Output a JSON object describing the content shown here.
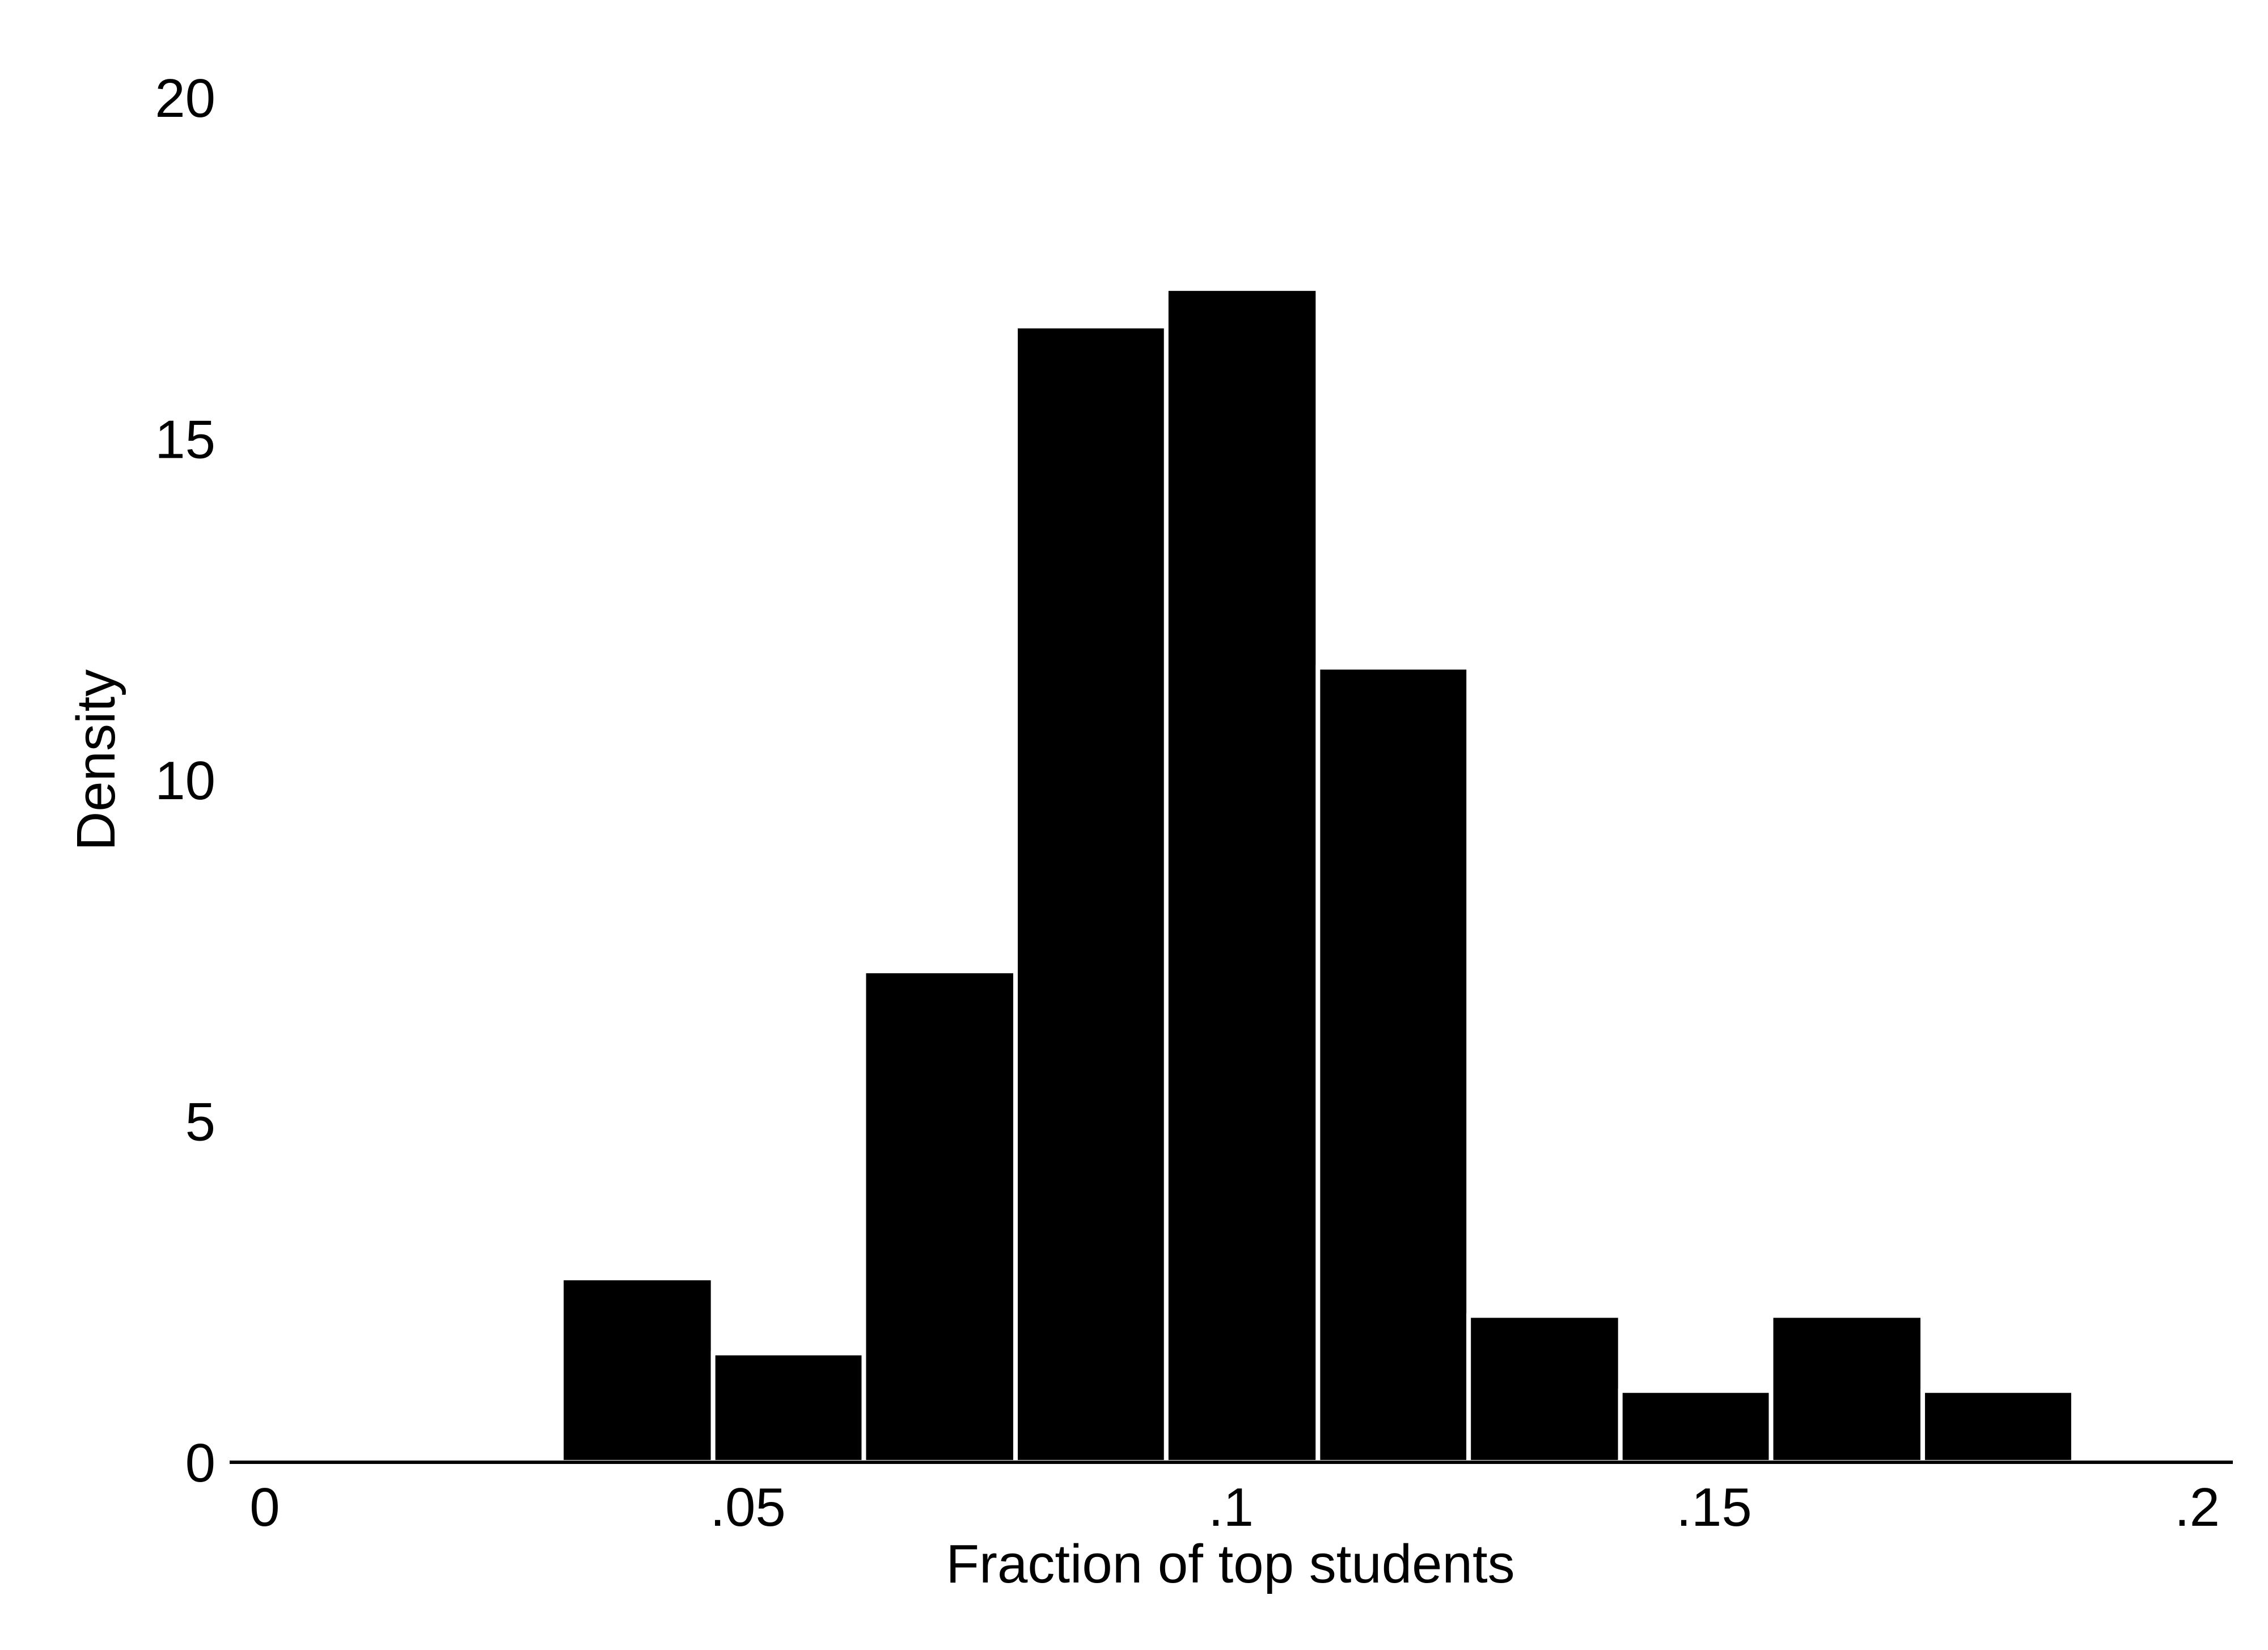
{
  "chart_data": {
    "type": "bar",
    "subtype": "histogram",
    "title": "",
    "xlabel": "Fraction of top students",
    "ylabel": "Density",
    "xlim": [
      0,
      0.2
    ],
    "ylim": [
      0,
      20
    ],
    "x_ticks": [
      {
        "value": 0,
        "label": "0"
      },
      {
        "value": 0.05,
        "label": ".05"
      },
      {
        "value": 0.1,
        "label": ".1"
      },
      {
        "value": 0.15,
        "label": ".15"
      },
      {
        "value": 0.2,
        "label": ".2"
      }
    ],
    "y_ticks": [
      {
        "value": 0,
        "label": "0"
      },
      {
        "value": 5,
        "label": "5"
      },
      {
        "value": 10,
        "label": "10"
      },
      {
        "value": 15,
        "label": "15"
      },
      {
        "value": 20,
        "label": "20"
      }
    ],
    "bins": [
      {
        "x0": 0.0307,
        "x1": 0.0464,
        "density": 2.7
      },
      {
        "x0": 0.0464,
        "x1": 0.062,
        "density": 1.6
      },
      {
        "x0": 0.062,
        "x1": 0.0777,
        "density": 7.2
      },
      {
        "x0": 0.0777,
        "x1": 0.0933,
        "density": 16.65
      },
      {
        "x0": 0.0933,
        "x1": 0.109,
        "density": 17.2
      },
      {
        "x0": 0.109,
        "x1": 0.1246,
        "density": 11.65
      },
      {
        "x0": 0.1246,
        "x1": 0.1403,
        "density": 2.15
      },
      {
        "x0": 0.1403,
        "x1": 0.1559,
        "density": 1.05
      },
      {
        "x0": 0.1559,
        "x1": 0.1716,
        "density": 2.15
      },
      {
        "x0": 0.1716,
        "x1": 0.1872,
        "density": 1.05
      }
    ],
    "grid": false,
    "legend": "none",
    "colors": {
      "bar_fill": "#000000",
      "bar_edge": "#ffffff",
      "axis": "#000000",
      "background": "#ffffff"
    }
  }
}
